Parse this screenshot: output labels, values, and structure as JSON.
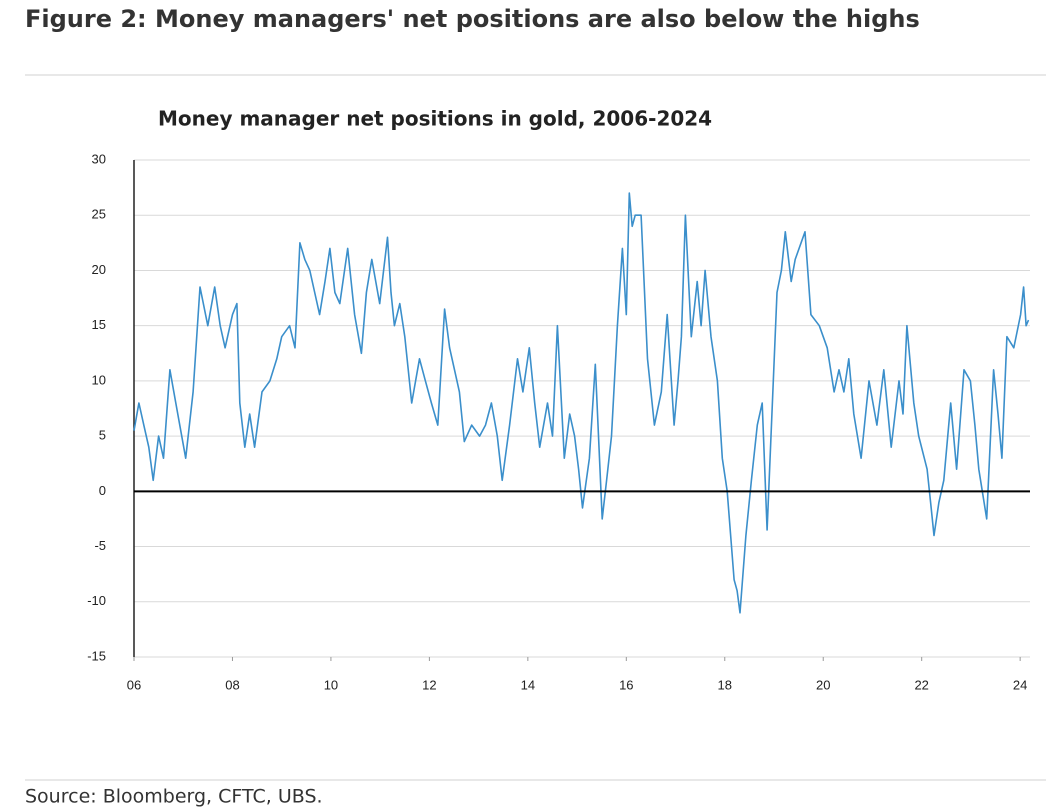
{
  "header": {
    "title": "Figure 2: Money managers' net positions are also below the highs"
  },
  "chart_data": {
    "type": "line",
    "title": "Money manager net positions in gold, 2006-2024",
    "color": "#3b8fcb",
    "x": [
      2006.0,
      2006.1,
      2006.2,
      2006.3,
      2006.39,
      2006.5,
      2006.6,
      2006.73,
      2006.85,
      2007.05,
      2007.2,
      2007.34,
      2007.5,
      2007.64,
      2007.75,
      2007.85,
      2008.0,
      2008.09,
      2008.15,
      2008.25,
      2008.35,
      2008.45,
      2008.6,
      2008.76,
      2008.9,
      2009.0,
      2009.16,
      2009.27,
      2009.37,
      2009.47,
      2009.57,
      2009.67,
      2009.77,
      2009.88,
      2009.98,
      2010.08,
      2010.18,
      2010.34,
      2010.48,
      2010.62,
      2010.72,
      2010.83,
      2010.99,
      2011.15,
      2011.22,
      2011.29,
      2011.4,
      2011.5,
      2011.64,
      2011.8,
      2011.92,
      2012.04,
      2012.17,
      2012.31,
      2012.41,
      2012.51,
      2012.61,
      2012.71,
      2012.86,
      2013.02,
      2013.14,
      2013.26,
      2013.38,
      2013.48,
      2013.63,
      2013.79,
      2013.9,
      2014.03,
      2014.14,
      2014.24,
      2014.4,
      2014.5,
      2014.6,
      2014.74,
      2014.85,
      2014.95,
      2015.03,
      2015.11,
      2015.25,
      2015.37,
      2015.51,
      2015.6,
      2015.7,
      2015.82,
      2015.92,
      2016.0,
      2016.06,
      2016.12,
      2016.18,
      2016.3,
      2016.43,
      2016.57,
      2016.71,
      2016.83,
      2016.97,
      2017.05,
      2017.12,
      2017.2,
      2017.32,
      2017.44,
      2017.52,
      2017.6,
      2017.72,
      2017.85,
      2017.95,
      2018.05,
      2018.19,
      2018.25,
      2018.31,
      2018.43,
      2018.54,
      2018.66,
      2018.76,
      2018.86,
      2018.94,
      2019.06,
      2019.15,
      2019.23,
      2019.35,
      2019.43,
      2019.51,
      2019.63,
      2019.75,
      2019.92,
      2020.08,
      2020.22,
      2020.32,
      2020.42,
      2020.52,
      2020.62,
      2020.77,
      2020.93,
      2021.09,
      2021.23,
      2021.38,
      2021.54,
      2021.62,
      2021.7,
      2021.84,
      2021.94,
      2022.11,
      2022.18,
      2022.25,
      2022.35,
      2022.45,
      2022.59,
      2022.71,
      2022.86,
      2022.99,
      2023.08,
      2023.16,
      2023.32,
      2023.46,
      2023.55,
      2023.63,
      2023.73,
      2023.87,
      2024.01,
      2024.07,
      2024.12,
      2024.17
    ],
    "values": [
      5.5,
      8,
      6,
      4,
      1,
      5,
      3,
      11,
      8,
      3,
      9,
      18.5,
      15,
      18.5,
      15,
      13,
      16,
      17,
      8,
      4,
      7,
      4,
      9,
      10,
      12,
      14,
      15,
      13,
      22.5,
      21,
      20,
      18,
      16,
      19,
      22,
      18,
      17,
      22,
      16,
      12.5,
      18,
      21,
      17,
      23,
      18,
      15,
      17,
      14,
      8,
      12,
      10,
      8,
      6,
      16.5,
      13,
      11,
      9,
      4.5,
      6,
      5,
      6,
      8,
      5,
      1,
      6,
      12,
      9,
      13,
      8,
      4,
      8,
      5,
      15,
      3,
      7,
      5,
      2,
      -1.5,
      3,
      11.5,
      -2.5,
      1,
      5,
      15,
      22,
      16,
      27,
      24,
      25,
      25,
      12,
      6,
      9,
      16,
      6,
      10,
      14,
      25,
      14,
      19,
      15,
      20,
      14,
      10,
      3,
      0,
      -8,
      -9,
      -11,
      -4,
      1,
      6,
      8,
      -3.5,
      5,
      18,
      20,
      23.5,
      19,
      21,
      22,
      23.5,
      16,
      15,
      13,
      9,
      11,
      9,
      12,
      7,
      3,
      10,
      6,
      11,
      4,
      10,
      7,
      15,
      8,
      5,
      2,
      -1,
      -4,
      -1,
      1,
      8,
      2,
      11,
      10,
      6,
      2,
      -2.5,
      11,
      7,
      3,
      14,
      13,
      16,
      18.5,
      15,
      15.5
    ],
    "xlim": [
      2006,
      2024.2
    ],
    "xticks": [
      {
        "value": 2006,
        "label": "06"
      },
      {
        "value": 2008,
        "label": "08"
      },
      {
        "value": 2010,
        "label": "10"
      },
      {
        "value": 2012,
        "label": "12"
      },
      {
        "value": 2014,
        "label": "14"
      },
      {
        "value": 2016,
        "label": "16"
      },
      {
        "value": 2018,
        "label": "18"
      },
      {
        "value": 2020,
        "label": "20"
      },
      {
        "value": 2022,
        "label": "22"
      },
      {
        "value": 2024,
        "label": "24"
      }
    ],
    "ylim": [
      -15,
      30
    ],
    "yticks": [
      -15,
      -10,
      -5,
      0,
      5,
      10,
      15,
      20,
      25,
      30
    ],
    "grid": true
  },
  "footer": {
    "source": "Source: Bloomberg, CFTC, UBS."
  }
}
